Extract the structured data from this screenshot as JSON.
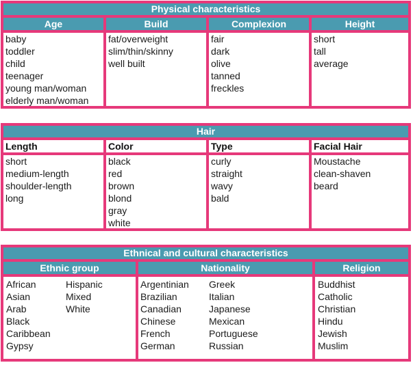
{
  "physical": {
    "title": "Physical characteristics",
    "columns": [
      {
        "header": "Age",
        "items": [
          "baby",
          "toddler",
          "child",
          "teenager",
          "young man/woman",
          "elderly man/woman"
        ]
      },
      {
        "header": "Build",
        "items": [
          "fat/overweight",
          "slim/thin/skinny",
          "well built"
        ]
      },
      {
        "header": "Complexion",
        "items": [
          "fair",
          "dark",
          "olive",
          "tanned",
          "freckles"
        ]
      },
      {
        "header": "Height",
        "items": [
          "short",
          "tall",
          "average"
        ]
      }
    ]
  },
  "hair": {
    "title": "Hair",
    "columns": [
      {
        "header": "Length",
        "items": [
          "short",
          "medium-length",
          "shoulder-length",
          "long"
        ]
      },
      {
        "header": "Color",
        "items": [
          "black",
          "red",
          "brown",
          "blond",
          "gray",
          "white"
        ]
      },
      {
        "header": "Type",
        "items": [
          "curly",
          "straight",
          "wavy",
          "bald"
        ]
      },
      {
        "header": "Facial Hair",
        "items": [
          "Moustache",
          "clean-shaven",
          "beard"
        ]
      }
    ]
  },
  "ethnic": {
    "title": "Ethnical and cultural characteristics",
    "columns": [
      {
        "header": "Ethnic group",
        "items_a": [
          "African",
          "Asian",
          "Arab",
          "Black",
          "Caribbean",
          "Gypsy"
        ],
        "items_b": [
          "Hispanic",
          "Mixed",
          "White"
        ]
      },
      {
        "header": "Nationality",
        "items_a": [
          "Argentinian",
          "Brazilian",
          "Canadian",
          "Chinese",
          "French",
          "German"
        ],
        "items_b": [
          "Greek",
          "Italian",
          "Japanese",
          "Mexican",
          "Portuguese",
          "Russian"
        ]
      },
      {
        "header": "Religion",
        "items_a": [
          "Buddhist",
          "Catholic",
          "Christian",
          "Hindu",
          "Jewish",
          "Muslim"
        ]
      }
    ]
  },
  "colors": {
    "pink": "#e6397a",
    "teal": "#4a9bb0"
  }
}
